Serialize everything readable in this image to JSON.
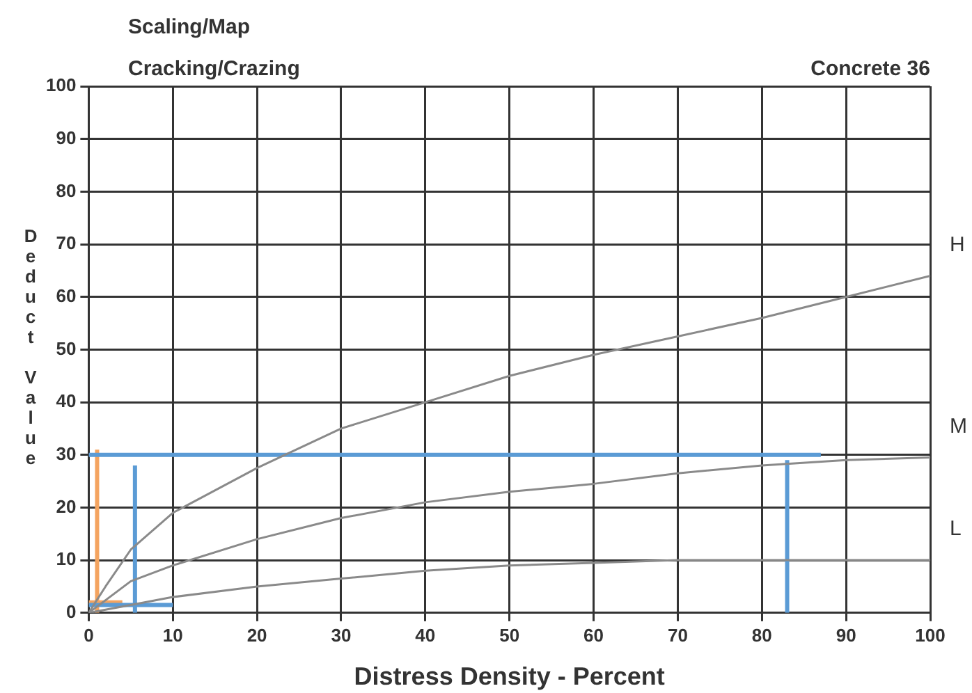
{
  "chart_data": {
    "type": "line",
    "title": "Scaling/Map",
    "subtitle": "Cracking/Crazing",
    "annotations": [
      "Concrete 36"
    ],
    "xlabel": "Distress Density - Percent",
    "ylabel": "Deduct Value",
    "xlim": [
      0,
      100
    ],
    "xticks": [
      0,
      10,
      20,
      30,
      40,
      50,
      60,
      70,
      80,
      90,
      100
    ],
    "ylim": [
      0,
      100
    ],
    "yticks": [
      0,
      10,
      20,
      30,
      40,
      50,
      60,
      70,
      80,
      90,
      100
    ],
    "grid": true,
    "legend": false,
    "marker": "none",
    "line_style": "solid",
    "series": [
      {
        "name": "H",
        "color": "#8a8a8a",
        "x": [
          0,
          2,
          5,
          10,
          20,
          30,
          40,
          50,
          60,
          70,
          80,
          90,
          100
        ],
        "values": [
          0,
          5,
          12,
          19,
          27.5,
          35,
          40,
          45,
          49,
          52.5,
          56,
          60,
          64
        ]
      },
      {
        "name": "M",
        "color": "#8a8a8a",
        "x": [
          0,
          5,
          10,
          20,
          30,
          40,
          50,
          60,
          70,
          80,
          90,
          100
        ],
        "values": [
          0,
          6,
          9,
          14,
          18,
          21,
          23,
          24.5,
          26.5,
          28,
          29,
          29.5
        ]
      },
      {
        "name": "L",
        "color": "#8a8a8a",
        "x": [
          0,
          5,
          10,
          20,
          30,
          40,
          50,
          60,
          70,
          80,
          90,
          100
        ],
        "values": [
          0,
          1.5,
          3,
          5,
          6.5,
          8,
          9,
          9.5,
          10,
          10,
          10,
          10
        ]
      },
      {
        "color": "#5b9bd5",
        "x": [
          0,
          87
        ],
        "values": [
          30,
          30
        ]
      },
      {
        "color": "#5b9bd5",
        "x": [
          83,
          83
        ],
        "values": [
          0,
          29
        ]
      },
      {
        "color": "#5b9bd5",
        "x": [
          5.5,
          5.5
        ],
        "values": [
          0,
          28
        ]
      },
      {
        "color": "#5b9bd5",
        "x": [
          0,
          10
        ],
        "values": [
          1.5,
          1.5
        ]
      },
      {
        "color": "#f4a460",
        "x": [
          1,
          1
        ],
        "values": [
          0,
          31
        ]
      },
      {
        "color": "#f4a460",
        "x": [
          0,
          4
        ],
        "values": [
          2,
          2
        ]
      }
    ]
  }
}
